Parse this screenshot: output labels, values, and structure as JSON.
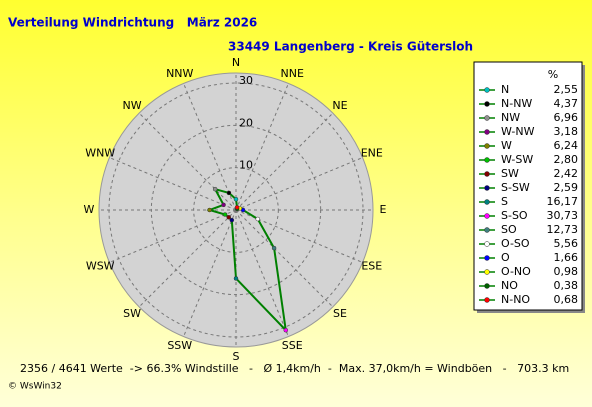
{
  "chart_data": {
    "type": "radar",
    "title": "Verteilung Windrichtung   März 2026",
    "subtitle": "33449 Langenberg - Kreis Gütersloh",
    "angle_labels": [
      "N",
      "NNE",
      "NE",
      "ENE",
      "E",
      "ESE",
      "SE",
      "SSE",
      "S",
      "SSW",
      "SW",
      "WSW",
      "W",
      "WNW",
      "NW",
      "NNW"
    ],
    "direction": "counterclockwise",
    "rlim": [
      0,
      30
    ],
    "rticks": [
      10,
      20,
      30
    ],
    "legend_title": "%",
    "line_color": "#008000",
    "categories": [
      "N",
      "N-NW",
      "NW",
      "W-NW",
      "W",
      "W-SW",
      "SW",
      "S-SW",
      "S",
      "S-SO",
      "SO",
      "O-SO",
      "O",
      "O-NO",
      "NO",
      "N-NO"
    ],
    "values": [
      2.55,
      4.37,
      6.96,
      3.18,
      6.24,
      2.8,
      2.42,
      2.59,
      16.17,
      30.73,
      12.73,
      5.56,
      1.66,
      0.98,
      0.38,
      0.68
    ],
    "value_labels": [
      "2,55",
      "4,37",
      "6,96",
      "3,18",
      "6,24",
      "2,80",
      "2,42",
      "2,59",
      "16,17",
      "30,73",
      "12,73",
      "5,56",
      "1,66",
      "0,98",
      "0,38",
      "0,68"
    ],
    "colors": [
      "#00c0c0",
      "#000000",
      "#909090",
      "#800080",
      "#808000",
      "#00c000",
      "#800000",
      "#000080",
      "#008080",
      "#ff00ff",
      "#408080",
      "#ffffff",
      "#0000ff",
      "#ffff00",
      "#006000",
      "#ff0000"
    ],
    "footer": "2356 / 4641 Werte  -> 66.3% Windstille   -   Ø 1,4km/h  -  Max. 37,0km/h = Windböen   -   703.3 km",
    "credit": "© WsWin32"
  }
}
